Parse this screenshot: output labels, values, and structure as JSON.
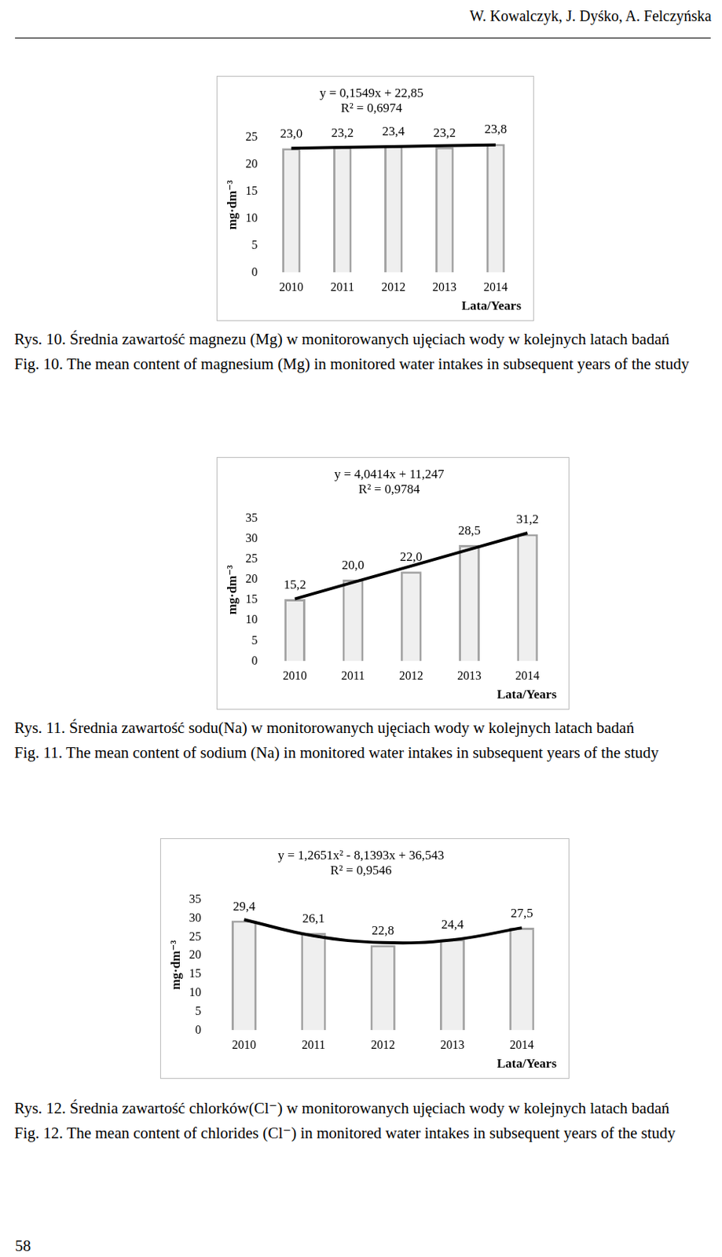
{
  "header": "W. Kowalczyk, J. Dyśko, A. Felczyńska",
  "page_number": "58",
  "chart_data": [
    {
      "type": "bar",
      "title": "y = 0,1549x + 22,85",
      "subtitle": "R² = 0,6974",
      "categories": [
        "2010",
        "2011",
        "2012",
        "2013",
        "2014"
      ],
      "x_label": "Lata/Years",
      "y_label": "mg·dm⁻³",
      "ylim": [
        0,
        25
      ],
      "yticks": [
        0,
        5,
        10,
        15,
        20,
        25
      ],
      "grid": false,
      "data_labels": true,
      "series": [
        {
          "type": "bar",
          "color": "#efefef",
          "values": [
            23.0,
            23.2,
            23.4,
            23.2,
            23.8
          ],
          "value_labels": [
            "23,0",
            "23,2",
            "23,4",
            "23,2",
            "23,8"
          ]
        },
        {
          "type": "line",
          "color": "#000000",
          "line_style": "solid",
          "values": [
            23.0,
            23.16,
            23.31,
            23.47,
            23.62
          ]
        }
      ]
    },
    {
      "type": "bar",
      "title": "y = 4,0414x + 11,247",
      "subtitle": "R² = 0,9784",
      "categories": [
        "2010",
        "2011",
        "2012",
        "2013",
        "2014"
      ],
      "x_label": "Lata/Years",
      "y_label": "mg·dm⁻³",
      "ylim": [
        0,
        35
      ],
      "yticks": [
        0,
        5,
        10,
        15,
        20,
        25,
        30,
        35
      ],
      "grid": false,
      "data_labels": true,
      "series": [
        {
          "type": "bar",
          "color": "#efefef",
          "values": [
            15.2,
            20.0,
            22.0,
            28.5,
            31.2
          ],
          "value_labels": [
            "15,2",
            "20,0",
            "22,0",
            "28,5",
            "31,2"
          ]
        },
        {
          "type": "line",
          "color": "#000000",
          "line_style": "solid",
          "values": [
            15.29,
            19.33,
            23.37,
            27.41,
            31.45
          ]
        }
      ]
    },
    {
      "type": "bar",
      "title": "y = 1,2651x² - 8,1393x + 36,543",
      "subtitle": "R² = 0,9546",
      "categories": [
        "2010",
        "2011",
        "2012",
        "2013",
        "2014"
      ],
      "x_label": "Lata/Years",
      "y_label": "mg·dm⁻³",
      "ylim": [
        0,
        35
      ],
      "yticks": [
        0,
        5,
        10,
        15,
        20,
        25,
        30,
        35
      ],
      "grid": false,
      "data_labels": true,
      "series": [
        {
          "type": "bar",
          "color": "#efefef",
          "values": [
            29.4,
            26.1,
            22.8,
            24.4,
            27.5
          ],
          "value_labels": [
            "29,4",
            "26,1",
            "22,8",
            "24,4",
            "27,5"
          ]
        },
        {
          "type": "line",
          "color": "#000000",
          "line_style": "curve",
          "values": [
            29.67,
            25.33,
            23.51,
            24.23,
            27.47
          ]
        }
      ]
    }
  ],
  "captions": [
    {
      "pl": "Rys. 10. Średnia zawartość magnezu (Mg) w monitorowanych ujęciach wody w kolejnych latach badań",
      "en": "Fig. 10. The mean content of magnesium (Mg) in monitored water intakes in subsequent years of the study"
    },
    {
      "pl": "Rys. 11. Średnia zawartość sodu(Na) w monitorowanych ujęciach wody w kolejnych latach badań",
      "en": "Fig. 11. The mean content of sodium (Na) in monitored water intakes in subsequent years of the study"
    },
    {
      "pl": "Rys. 12. Średnia zawartość chlorków(Cl⁻) w monitorowanych ujęciach wody w kolejnych latach badań",
      "en": "Fig. 12. The mean content of chlorides (Cl⁻) in monitored water intakes in subsequent years of the study"
    }
  ]
}
